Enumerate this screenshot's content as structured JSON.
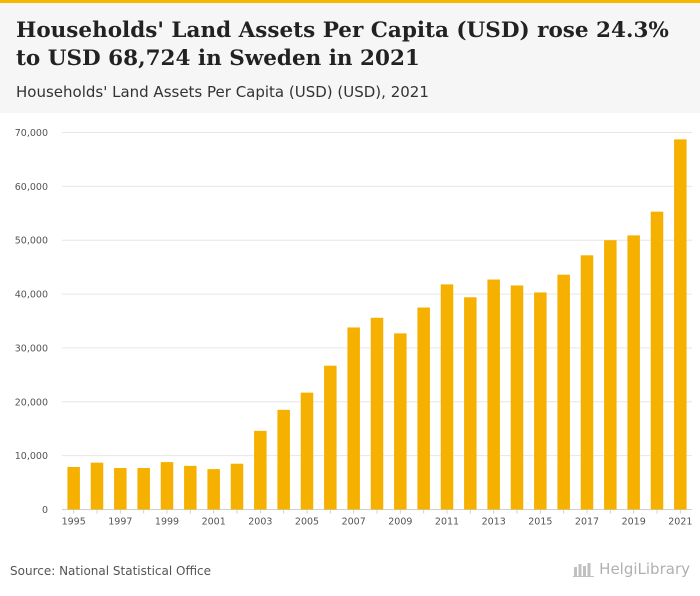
{
  "header": {
    "title": "Households' Land Assets Per Capita (USD) rose 24.3% to USD 68,724 in Sweden in 2021",
    "subtitle": "Households' Land Assets Per Capita (USD) (USD), 2021"
  },
  "footer": {
    "source": "Source: National Statistical Office",
    "logo_text": "HelgiLibrary"
  },
  "colors": {
    "bar": "#f5b000",
    "grid": "#e6e6e6",
    "accent": "#f5b800"
  },
  "chart_data": {
    "type": "bar",
    "title": "Households' Land Assets Per Capita (USD) rose 24.3% to USD 68,724 in Sweden in 2021",
    "xlabel": "",
    "ylabel": "",
    "ylim": [
      0,
      70000
    ],
    "yticks": [
      0,
      10000,
      20000,
      30000,
      40000,
      50000,
      60000,
      70000
    ],
    "ytick_labels": [
      "0",
      "10,000",
      "20,000",
      "30,000",
      "40,000",
      "50,000",
      "60,000",
      "70,000"
    ],
    "categories": [
      "1995",
      "1996",
      "1997",
      "1998",
      "1999",
      "2000",
      "2001",
      "2002",
      "2003",
      "2004",
      "2005",
      "2006",
      "2007",
      "2008",
      "2009",
      "2010",
      "2011",
      "2012",
      "2013",
      "2014",
      "2015",
      "2016",
      "2017",
      "2018",
      "2019",
      "2020",
      "2021"
    ],
    "xtick_labels": [
      "1995",
      "1997",
      "1999",
      "2001",
      "2003",
      "2005",
      "2007",
      "2009",
      "2011",
      "2013",
      "2015",
      "2017",
      "2019",
      "2021"
    ],
    "values": [
      7900,
      8700,
      7700,
      7700,
      8800,
      8100,
      7500,
      8500,
      14600,
      18500,
      21700,
      26700,
      33800,
      35600,
      32700,
      37500,
      41800,
      39400,
      42700,
      41600,
      40300,
      43600,
      47200,
      50000,
      50900,
      55300,
      68724
    ]
  }
}
